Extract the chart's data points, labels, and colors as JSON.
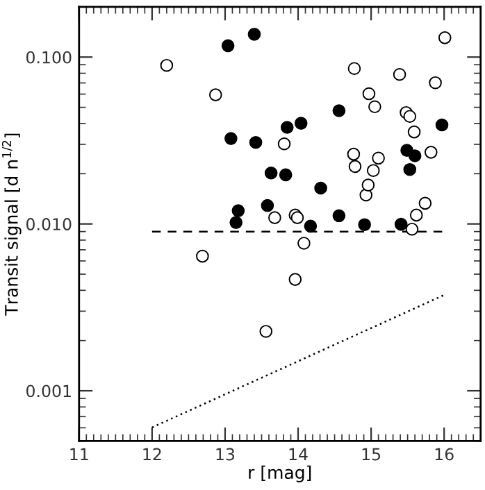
{
  "chart_data": {
    "type": "scatter",
    "xlabel": "r [mag]",
    "ylabel": "Transit signal [d n$^{1/2}$]",
    "xlim": [
      11,
      16.5
    ],
    "xticks": [
      11,
      12,
      13,
      14,
      15,
      16
    ],
    "ylim": [
      0.0005,
      0.2
    ],
    "yticks": [
      {
        "value": 0.1,
        "label": "0.100"
      },
      {
        "value": 0.01,
        "label": "0.010"
      },
      {
        "value": 0.001,
        "label": "0.001"
      }
    ],
    "log": "y",
    "grid": false,
    "legend": false,
    "series": [
      {
        "color": "#000000",
        "marker": "circle",
        "x": [
          13.04,
          13.4,
          13.08,
          13.42,
          13.85,
          14.04,
          14.56,
          15.97,
          13.63,
          13.83,
          14.31,
          15.49,
          15.6,
          15.53,
          13.18,
          13.15,
          13.58,
          14.17,
          14.56,
          14.91,
          15.41
        ],
        "values": [
          0.117,
          0.137,
          0.0325,
          0.0308,
          0.0379,
          0.0401,
          0.0477,
          0.0392,
          0.0202,
          0.0197,
          0.0164,
          0.0276,
          0.0256,
          0.0212,
          0.012,
          0.0102,
          0.0129,
          0.0097,
          0.0112,
          0.0099,
          0.00995
        ]
      },
      {
        "color": "#ffffff",
        "marker": "circle",
        "x": [
          12.2,
          12.87,
          14.77,
          15.39,
          16.01,
          14.97,
          15.05,
          15.53,
          15.59,
          14.76,
          14.78,
          15.1,
          15.03,
          14.96,
          15.74,
          15.62,
          13.99,
          15.56,
          14.08,
          13.96,
          13.56
        ],
        "values": [
          0.0892,
          0.0594,
          0.0854,
          0.0787,
          0.1306,
          0.0603,
          0.0504,
          0.0441,
          0.0356,
          0.0262,
          0.0221,
          0.0248,
          0.0209,
          0.0171,
          0.0133,
          0.0113,
          0.0109,
          0.0093,
          0.00766,
          0.00465,
          0.00227
        ]
      },
      {
        "color": "#ffffff",
        "marker": "circle",
        "x": [
          15.88,
          15.48,
          13.81,
          15.82,
          14.93,
          13.68,
          13.96,
          12.69
        ],
        "values": [
          0.0702,
          0.0465,
          0.0302,
          0.0269,
          0.0149,
          0.0109,
          0.0113,
          0.00641
        ]
      },
      {
        "type": "line",
        "color": "#000000",
        "marker": "none",
        "line_style": "dashed",
        "x": [
          12,
          16
        ],
        "values": [
          0.009,
          0.009
        ]
      },
      {
        "type": "line",
        "color": "#000000",
        "marker": "none",
        "line_style": "dotted",
        "x": [
          12,
          16
        ],
        "values": [
          0.000603,
          0.00375
        ]
      }
    ]
  }
}
